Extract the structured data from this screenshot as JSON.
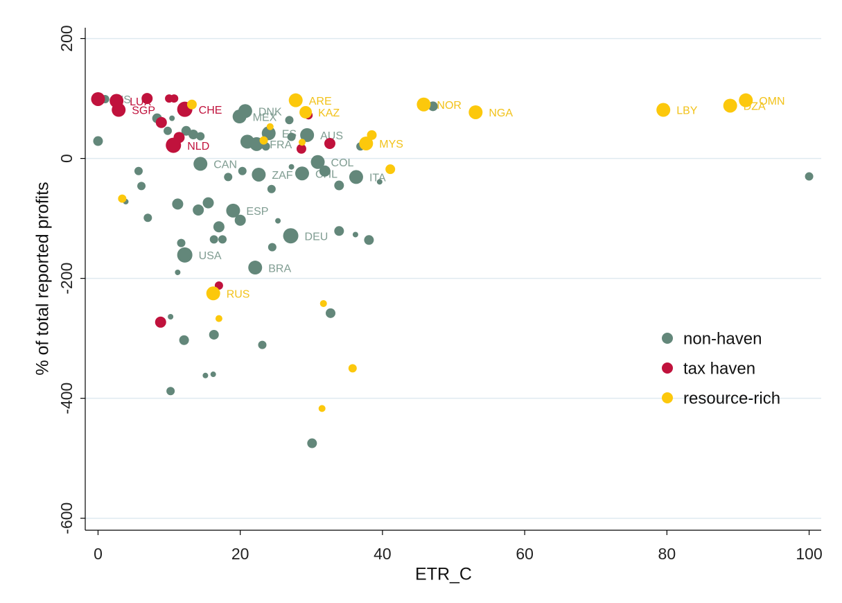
{
  "chart_data": {
    "type": "scatter",
    "xlabel": "ETR_C",
    "ylabel": "% of total reported profits",
    "xlim": [
      -1.8,
      101.7
    ],
    "ylim": [
      -620,
      218
    ],
    "xticks": [
      0,
      20,
      40,
      60,
      80,
      100
    ],
    "yticks": [
      -600,
      -400,
      -200,
      0,
      200
    ],
    "grid": true,
    "legend": "lower right",
    "series": [
      {
        "name": "non-haven",
        "color": "#63877a",
        "label_color": "#7f9c91",
        "x": [
          0,
          8.3,
          9.8,
          10.4,
          12.4,
          13.4,
          14.4,
          5.7,
          6.1,
          3.9,
          7,
          11.2,
          14.1,
          15.5,
          14.4,
          18.3,
          20.3,
          19,
          20,
          17,
          11.7,
          16.3,
          17.5,
          12.2,
          11.2,
          22.1,
          24.5,
          27.1,
          25.3,
          24.4,
          22.6,
          28.7,
          31.9,
          30.9,
          27.2,
          33.9,
          36.3,
          39.6,
          33.9,
          36.2,
          38.1,
          32.7,
          23.1,
          16.3,
          12.1,
          10.2,
          15.1,
          16.2,
          10.2,
          30.1,
          19.9,
          20.7,
          26.9,
          21,
          22.3,
          23.6,
          24,
          29.4,
          27.2,
          36.9,
          47.1,
          100,
          1
        ],
        "values": [
          29,
          67,
          46,
          67,
          46,
          40,
          37,
          -21,
          -46,
          -72,
          -99,
          -76,
          -86,
          -74,
          -9,
          -31,
          -21,
          -87,
          -103,
          -114,
          -141,
          -135,
          -135,
          -161,
          -190,
          -182,
          -148,
          -129,
          -104,
          -51,
          -27,
          -25,
          -21,
          -6,
          -14,
          -45,
          -31,
          -39,
          -121,
          -127,
          -136,
          -258,
          -311,
          -294,
          -303,
          -264,
          -362,
          -360,
          -388,
          -475,
          70,
          79,
          64,
          28,
          24,
          20,
          42,
          39,
          36,
          20,
          87,
          -30,
          99
        ],
        "sizes": [
          7,
          7,
          6,
          4,
          7,
          7,
          6,
          6,
          6,
          4,
          6,
          8,
          8,
          8,
          10,
          6,
          6,
          10,
          8,
          8,
          6,
          6,
          6,
          11,
          4,
          10,
          6,
          11,
          4,
          6,
          10,
          10,
          8,
          10,
          4,
          7,
          10,
          4,
          7,
          4,
          7,
          7,
          6,
          7,
          7,
          4,
          4,
          4,
          6,
          7,
          10,
          10,
          6,
          10,
          10,
          6,
          10,
          10,
          6,
          6,
          7,
          6,
          6
        ],
        "labels": [
          null,
          null,
          null,
          null,
          null,
          null,
          null,
          null,
          null,
          null,
          null,
          null,
          null,
          null,
          "CAN",
          null,
          null,
          "ESP",
          null,
          null,
          null,
          null,
          null,
          "USA",
          null,
          "BRA",
          null,
          "DEU",
          null,
          null,
          "ZAF",
          "CHL",
          null,
          "COL",
          null,
          null,
          "ITA",
          null,
          null,
          null,
          null,
          null,
          null,
          null,
          null,
          null,
          null,
          null,
          null,
          null,
          "MEX",
          "DNK",
          null,
          null,
          "FRA",
          null,
          "ES",
          "AUS",
          null,
          null,
          null,
          null,
          "HS"
        ]
      },
      {
        "name": "tax haven",
        "color": "#c0123c",
        "label_color": "#c0123c",
        "x": [
          0,
          2.6,
          2.9,
          6.9,
          10,
          10.7,
          8.9,
          12.2,
          11.4,
          10.6,
          29.6,
          32.6,
          28.6,
          17,
          8.8
        ],
        "values": [
          99,
          96,
          81,
          100,
          100,
          100,
          60,
          82,
          35,
          22,
          72,
          25,
          16,
          -212,
          -273
        ],
        "sizes": [
          10,
          10,
          10,
          8,
          6,
          6,
          8,
          11,
          8,
          11,
          6,
          8,
          7,
          6,
          8
        ],
        "labels": [
          null,
          "LUX",
          "SGP",
          null,
          null,
          null,
          null,
          "CHE",
          null,
          "NLD",
          null,
          null,
          null,
          null,
          null
        ]
      },
      {
        "name": "resource-rich",
        "color": "#fcc80c",
        "label_color": "#f2c21a",
        "x": [
          13.2,
          27.8,
          29.2,
          24.2,
          23.3,
          28.7,
          37.7,
          38.5,
          41.1,
          45.8,
          53.1,
          79.5,
          88.9,
          91.1,
          3.4,
          16.2,
          17,
          31.7,
          35.8,
          31.5
        ],
        "values": [
          90,
          97,
          77,
          53,
          30,
          27,
          25,
          39,
          -18,
          90,
          77,
          81,
          88,
          97,
          -67,
          -225,
          -267,
          -242,
          -350,
          -417
        ],
        "sizes": [
          7,
          10,
          9,
          5,
          6,
          5,
          10,
          7,
          7,
          10,
          10,
          10,
          10,
          10,
          6,
          10,
          5,
          5,
          6,
          5
        ],
        "labels": [
          null,
          "ARE",
          "KAZ",
          null,
          null,
          null,
          "MYS",
          null,
          null,
          "NOR",
          "NGA",
          "LBY",
          "DZA",
          "OMN",
          null,
          "RUS",
          null,
          null,
          null,
          null
        ]
      }
    ]
  }
}
